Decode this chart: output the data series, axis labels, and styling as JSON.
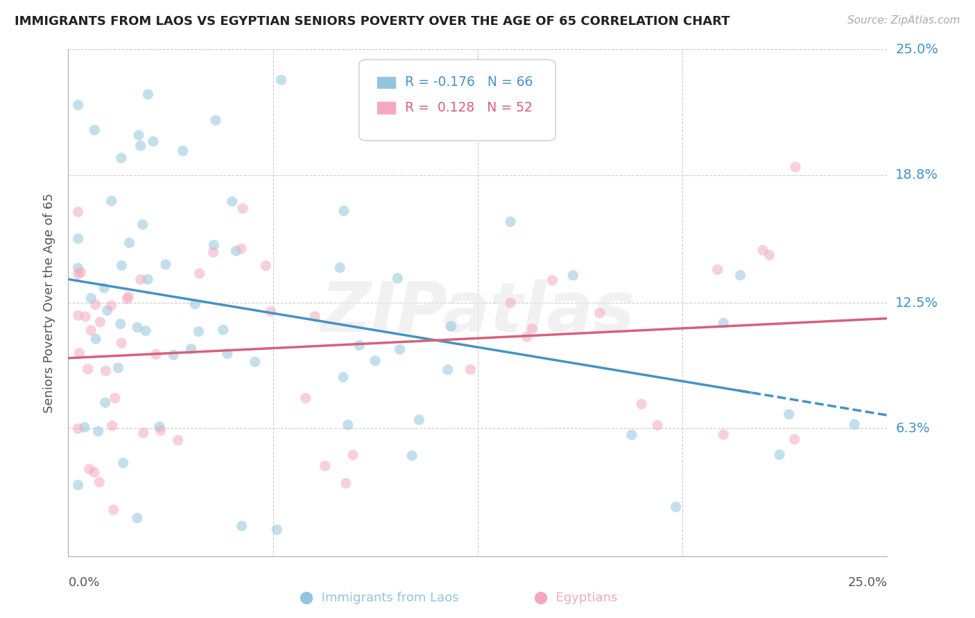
{
  "title": "IMMIGRANTS FROM LAOS VS EGYPTIAN SENIORS POVERTY OVER THE AGE OF 65 CORRELATION CHART",
  "source": "Source: ZipAtlas.com",
  "ylabel": "Seniors Poverty Over the Age of 65",
  "xlim": [
    0.0,
    0.25
  ],
  "ylim": [
    0.0,
    0.25
  ],
  "yticks": [
    0.063,
    0.125,
    0.188,
    0.25
  ],
  "ytick_labels": [
    "6.3%",
    "12.5%",
    "18.8%",
    "25.0%"
  ],
  "background_color": "#ffffff",
  "dot_color_laos": "#92c5de",
  "dot_color_egypt": "#f4a9c0",
  "line_color_laos": "#4393c3",
  "line_color_egypt": "#d6617b",
  "laos_line_intercept": 0.135,
  "laos_line_slope": -0.28,
  "egypt_line_intercept": 0.095,
  "egypt_line_slope": 0.12,
  "legend_laos_R": "R = -0.176",
  "legend_laos_N": "N = 66",
  "legend_egypt_R": "R =  0.128",
  "legend_egypt_N": "N = 52",
  "legend_color_laos": "#4393c3",
  "legend_color_egypt": "#d6617b",
  "watermark": "ZIPatlas",
  "watermark_color": "#e8e8e8",
  "dot_size": 120,
  "dot_alpha": 0.55
}
